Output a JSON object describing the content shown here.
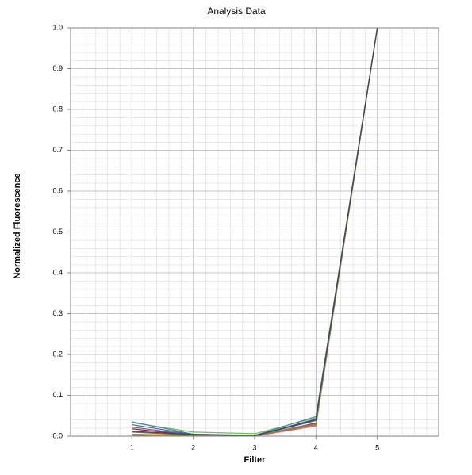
{
  "chart_data": {
    "type": "line",
    "title": "Analysis Data",
    "x_label": "Filter",
    "y_label": "Normalized Fluorescence",
    "x": [
      1,
      2,
      3,
      4,
      5
    ],
    "xlim": [
      0,
      6
    ],
    "xticks": [
      1,
      2,
      3,
      4,
      5
    ],
    "ylim": [
      0,
      1
    ],
    "yticks": [
      {
        "value": 0,
        "label": "0.0"
      },
      0.1,
      0.2,
      0.3,
      0.4,
      0.5,
      0.6,
      0.7,
      0.8,
      0.9,
      {
        "value": 1,
        "label": "1.0"
      }
    ],
    "grid": true,
    "series": [
      {
        "color": "#6fbf60",
        "values": [
          0.033,
          0.01,
          0.006,
          0.045,
          1
        ]
      },
      {
        "color": "#3e8fa0",
        "values": [
          0.035,
          0.005,
          0.002,
          0.048,
          1
        ]
      },
      {
        "color": "#4a5fb0",
        "values": [
          0.028,
          0.004,
          0.001,
          0.042,
          1
        ]
      },
      {
        "color": "#8a4a9a",
        "values": [
          0.022,
          0.003,
          0.001,
          0.038,
          1
        ]
      },
      {
        "color": "#8b2a2a",
        "values": [
          0.018,
          0.002,
          0,
          0.032,
          1
        ]
      },
      {
        "color": "#8b6a3a",
        "values": [
          0.01,
          0.002,
          0.001,
          0.028,
          1
        ]
      },
      {
        "color": "#d0607a",
        "values": [
          0.005,
          0.001,
          0,
          0.025,
          1
        ]
      },
      {
        "color": "#8a8a30",
        "values": [
          0.002,
          0.003,
          0.002,
          0.03,
          1
        ]
      },
      {
        "color": "#3a4a4a",
        "values": [
          0.012,
          0.004,
          0.001,
          0.04,
          1
        ]
      }
    ]
  }
}
